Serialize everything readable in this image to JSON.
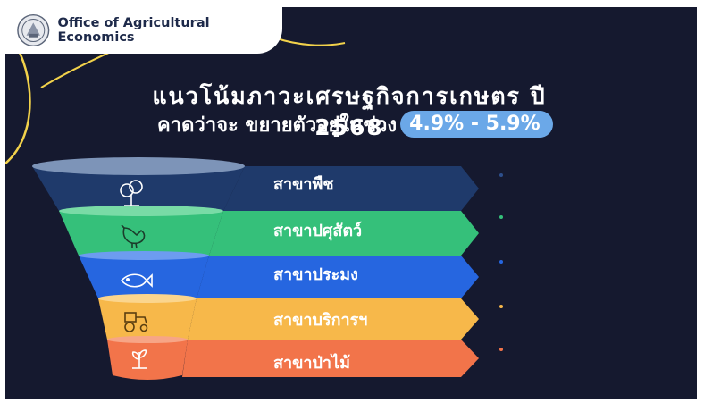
{
  "header": {
    "org_name": "Office of Agricultural Economics",
    "seal_icon": "oae-seal-icon"
  },
  "title": {
    "line1": "แนวโน้มภาวะเศรษฐกิจการเกษตร ปี 2568",
    "line2": "คาดว่าจะ ขยายตัวอยู่ในช่วง",
    "range": "4.9% - 5.9%"
  },
  "colors": {
    "background": "#15192f",
    "accent_yellow": "#f2d24b",
    "range_pill": "#6ba8e8"
  },
  "sectors": [
    {
      "label": "สาขาพืช",
      "icon": "tree-icon",
      "color": "#1f3a6b"
    },
    {
      "label": "สาขาปศุสัตว์",
      "icon": "chicken-icon",
      "color": "#35c07a"
    },
    {
      "label": "สาขาประมง",
      "icon": "fish-icon",
      "color": "#2666e0"
    },
    {
      "label": "สาขาบริการฯ",
      "icon": "tractor-icon",
      "color": "#f7b84a"
    },
    {
      "label": "สาขาป่าไม้",
      "icon": "sprout-icon",
      "color": "#f2744a"
    }
  ]
}
